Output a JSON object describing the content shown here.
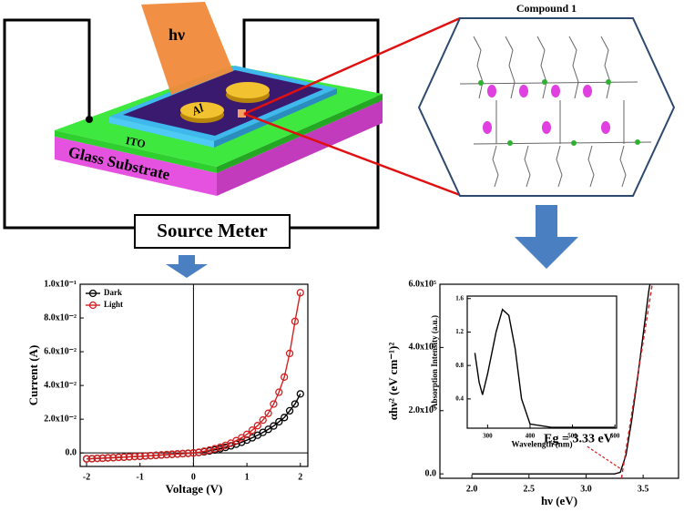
{
  "diagram": {
    "beam_label": "hν",
    "electrode_label": "Al",
    "ito_label": "ITO",
    "substrate_label": "Glass Substrate",
    "instrument_label": "Source Meter",
    "compound_label": "Compound 1"
  },
  "chart_data": [
    {
      "type": "line",
      "xlabel": "Voltage (V)",
      "ylabel": "Current (A)",
      "x": [
        -2,
        -1.9,
        -1.8,
        -1.7,
        -1.6,
        -1.5,
        -1.4,
        -1.3,
        -1.2,
        -1.1,
        -1,
        -0.9,
        -0.8,
        -0.7,
        -0.6,
        -0.5,
        -0.4,
        -0.3,
        -0.2,
        -0.1,
        0,
        0.1,
        0.2,
        0.3,
        0.4,
        0.5,
        0.6,
        0.7,
        0.8,
        0.9,
        1,
        1.1,
        1.2,
        1.3,
        1.4,
        1.5,
        1.6,
        1.7,
        1.8,
        1.9,
        2
      ],
      "series": [
        {
          "name": "Dark",
          "color": "#000000",
          "values": [
            -0.0035,
            -0.0034,
            -0.0032,
            -0.0031,
            -0.0029,
            -0.0028,
            -0.0026,
            -0.0025,
            -0.0023,
            -0.0021,
            -0.002,
            -0.0018,
            -0.0016,
            -0.0014,
            -0.0012,
            -0.001,
            -0.0008,
            -0.0006,
            -0.0004,
            -0.0002,
            0,
            0.0003,
            0.0007,
            0.0012,
            0.0018,
            0.0025,
            0.0033,
            0.0042,
            0.0052,
            0.0063,
            0.0076,
            0.009,
            0.0105,
            0.0122,
            0.014,
            0.016,
            0.0185,
            0.021,
            0.025,
            0.029,
            0.035
          ]
        },
        {
          "name": "Light",
          "color": "#d42020",
          "values": [
            -0.0035,
            -0.0034,
            -0.0032,
            -0.0031,
            -0.0029,
            -0.0028,
            -0.0026,
            -0.0025,
            -0.0023,
            -0.0021,
            -0.002,
            -0.0018,
            -0.0016,
            -0.0014,
            -0.0012,
            -0.001,
            -0.0008,
            -0.0006,
            -0.0004,
            -0.0002,
            0,
            0.0004,
            0.001,
            0.0017,
            0.0025,
            0.0034,
            0.0045,
            0.0058,
            0.0073,
            0.009,
            0.011,
            0.0135,
            0.0162,
            0.0195,
            0.0235,
            0.029,
            0.036,
            0.045,
            0.059,
            0.078,
            0.095
          ]
        }
      ],
      "marker": "circle",
      "legend": "upper left",
      "zero_lines": true,
      "xlim": [
        -2.12,
        2.14
      ],
      "xticks": [
        -2,
        -1,
        0,
        1,
        2
      ],
      "ylim": [
        -0.008,
        0.1
      ],
      "yticks": [
        {
          "value": 0,
          "label": "0.0"
        },
        {
          "value": 0.02,
          "label": "2.0x10⁻²"
        },
        {
          "value": 0.04,
          "label": "4.0x10⁻²"
        },
        {
          "value": 0.06,
          "label": "6.0x10⁻²"
        },
        {
          "value": 0.08,
          "label": "8.0x10⁻²"
        },
        {
          "value": 0.1,
          "label": "1.0x10⁻¹"
        }
      ]
    },
    {
      "type": "line",
      "xlabel": "hν (eV)",
      "ylabel": "αhν² (eV cm⁻¹)²",
      "annotation": "Eg = 3.33 eV",
      "series": [
        {
          "color": "#000000",
          "x": [
            2.0,
            2.5,
            3.0,
            3.25,
            3.3,
            3.35,
            3.4,
            3.45,
            3.5,
            3.55,
            3.56
          ],
          "values": [
            0,
            0,
            0,
            0,
            5000,
            60000,
            170000,
            300000,
            440000,
            580000,
            600000
          ]
        },
        {
          "color": "#d42020",
          "style": "dashed",
          "x": [
            3.31,
            3.58
          ],
          "values": [
            -14000,
            600000
          ]
        }
      ],
      "xlim": [
        1.72,
        3.81
      ],
      "xticks": [
        {
          "value": 2,
          "label": "2.0"
        },
        2.5,
        {
          "value": 3,
          "label": "3.0"
        },
        3.5
      ],
      "ylim": [
        -14000,
        600000
      ],
      "yticks": [
        {
          "value": 0,
          "label": "0.0"
        },
        {
          "value": 200000,
          "label": "2.0x10⁵"
        },
        {
          "value": 400000,
          "label": "4.0x10⁵"
        },
        {
          "value": 600000,
          "label": "6.0x10⁵"
        }
      ]
    },
    {
      "type": "line",
      "xlabel": "Wavelength (nm)",
      "ylabel": "Absorption Intensity (a.u.)",
      "series": [
        {
          "color": "#000000",
          "x": [
            270,
            280,
            288,
            300,
            320,
            335,
            350,
            365,
            380,
            400,
            450,
            600
          ],
          "values": [
            0.95,
            0.6,
            0.45,
            0.7,
            1.2,
            1.47,
            1.4,
            1.0,
            0.4,
            0.1,
            0.06,
            0.06
          ]
        }
      ],
      "xlim": [
        252,
        604
      ],
      "xticks": [
        300,
        400,
        500,
        600
      ],
      "ylim": [
        0.05,
        1.63
      ],
      "yticks": [
        0.4,
        0.8,
        1.2,
        1.6
      ]
    }
  ]
}
